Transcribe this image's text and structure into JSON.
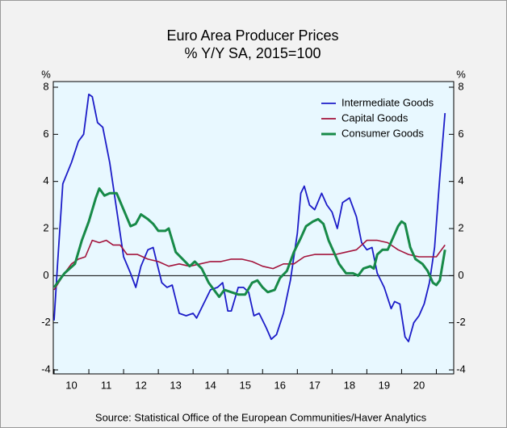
{
  "chart_data": {
    "type": "line",
    "title": "Euro Area Producer Prices",
    "subtitle": "% Y/Y   SA, 2015=100",
    "ylabel": "%",
    "source": "Source:  Statistical Office of the European Communities/Haver Analytics",
    "xlim": [
      2010,
      2021.5
    ],
    "xticks": [
      2010,
      2011,
      2012,
      2013,
      2014,
      2015,
      2016,
      2017,
      2018,
      2019,
      2020,
      2021
    ],
    "xlabels": [
      {
        "value": 2010.5,
        "label": "10"
      },
      {
        "value": 2011.5,
        "label": "11"
      },
      {
        "value": 2012.5,
        "label": "12"
      },
      {
        "value": 2013.5,
        "label": "13"
      },
      {
        "value": 2014.5,
        "label": "14"
      },
      {
        "value": 2015.5,
        "label": "15"
      },
      {
        "value": 2016.5,
        "label": "16"
      },
      {
        "value": 2017.5,
        "label": "17"
      },
      {
        "value": 2018.5,
        "label": "18"
      },
      {
        "value": 2019.5,
        "label": "19"
      },
      {
        "value": 2020.5,
        "label": "20"
      }
    ],
    "ylim": [
      -4.17,
      8.24
    ],
    "yticks": [
      -4,
      -2,
      0,
      2,
      4,
      6,
      8
    ],
    "hline": 0,
    "legend": "top-right",
    "series": [
      {
        "name": "Intermediate Goods",
        "color": "#1c1cc8",
        "x": [
          2010.0,
          2010.1,
          2010.25,
          2010.5,
          2010.7,
          2010.85,
          2011.0,
          2011.1,
          2011.25,
          2011.4,
          2011.6,
          2011.8,
          2012.0,
          2012.2,
          2012.35,
          2012.5,
          2012.7,
          2012.85,
          2013.0,
          2013.1,
          2013.25,
          2013.4,
          2013.6,
          2013.8,
          2014.0,
          2014.1,
          2014.3,
          2014.5,
          2014.7,
          2014.85,
          2015.0,
          2015.1,
          2015.3,
          2015.45,
          2015.6,
          2015.75,
          2015.9,
          2016.1,
          2016.25,
          2016.4,
          2016.6,
          2016.8,
          2017.0,
          2017.1,
          2017.2,
          2017.35,
          2017.5,
          2017.7,
          2017.85,
          2018.0,
          2018.15,
          2018.3,
          2018.5,
          2018.7,
          2018.85,
          2019.0,
          2019.15,
          2019.3,
          2019.5,
          2019.7,
          2019.8,
          2019.95,
          2020.1,
          2020.2,
          2020.35,
          2020.5,
          2020.65,
          2020.8,
          2020.95,
          2021.1,
          2021.25
        ],
        "values": [
          -1.9,
          0.5,
          3.9,
          4.8,
          5.7,
          6.0,
          7.7,
          7.6,
          6.5,
          6.3,
          4.8,
          2.8,
          0.8,
          0.1,
          -0.5,
          0.4,
          1.1,
          1.2,
          0.3,
          -0.3,
          -0.5,
          -0.4,
          -1.6,
          -1.7,
          -1.6,
          -1.8,
          -1.2,
          -0.6,
          -0.5,
          -0.3,
          -1.5,
          -1.5,
          -0.5,
          -0.5,
          -0.7,
          -1.7,
          -1.6,
          -2.2,
          -2.7,
          -2.5,
          -1.6,
          -0.2,
          1.8,
          3.5,
          3.8,
          3.0,
          2.8,
          3.5,
          3.0,
          2.7,
          2.0,
          3.1,
          3.3,
          2.5,
          1.4,
          1.1,
          1.2,
          0.1,
          -0.5,
          -1.4,
          -1.1,
          -1.2,
          -2.6,
          -2.8,
          -2.0,
          -1.7,
          -1.2,
          -0.3,
          1.2,
          4.2,
          6.9
        ]
      },
      {
        "name": "Capital Goods",
        "color": "#a3143c",
        "x": [
          2010.0,
          2010.3,
          2010.5,
          2010.7,
          2010.9,
          2011.1,
          2011.3,
          2011.5,
          2011.7,
          2011.9,
          2012.1,
          2012.4,
          2012.7,
          2013.0,
          2013.3,
          2013.6,
          2013.9,
          2014.2,
          2014.5,
          2014.8,
          2015.1,
          2015.4,
          2015.7,
          2016.0,
          2016.3,
          2016.6,
          2016.9,
          2017.2,
          2017.5,
          2017.8,
          2018.1,
          2018.4,
          2018.7,
          2019.0,
          2019.3,
          2019.6,
          2019.9,
          2020.2,
          2020.5,
          2020.8,
          2021.0,
          2021.25
        ],
        "values": [
          -0.6,
          0.1,
          0.5,
          0.7,
          0.8,
          1.5,
          1.4,
          1.5,
          1.3,
          1.3,
          0.9,
          0.9,
          0.7,
          0.6,
          0.4,
          0.5,
          0.4,
          0.5,
          0.6,
          0.6,
          0.7,
          0.7,
          0.6,
          0.4,
          0.3,
          0.5,
          0.5,
          0.8,
          0.9,
          0.9,
          0.9,
          1.0,
          1.1,
          1.5,
          1.5,
          1.4,
          1.1,
          0.9,
          0.8,
          0.8,
          0.8,
          1.3
        ]
      },
      {
        "name": "Consumer Goods",
        "color": "#178a48",
        "x": [
          2010.0,
          2010.3,
          2010.6,
          2010.8,
          2011.0,
          2011.2,
          2011.3,
          2011.45,
          2011.6,
          2011.8,
          2012.0,
          2012.2,
          2012.35,
          2012.5,
          2012.7,
          2012.85,
          2013.0,
          2013.2,
          2013.3,
          2013.5,
          2013.7,
          2013.9,
          2014.05,
          2014.25,
          2014.45,
          2014.6,
          2014.75,
          2014.9,
          2015.1,
          2015.3,
          2015.5,
          2015.7,
          2015.85,
          2016.0,
          2016.15,
          2016.35,
          2016.5,
          2016.7,
          2016.9,
          2017.1,
          2017.25,
          2017.45,
          2017.6,
          2017.75,
          2017.9,
          2018.05,
          2018.2,
          2018.4,
          2018.6,
          2018.75,
          2018.9,
          2019.1,
          2019.2,
          2019.3,
          2019.45,
          2019.6,
          2019.75,
          2019.9,
          2020.0,
          2020.1,
          2020.25,
          2020.4,
          2020.6,
          2020.75,
          2020.9,
          2021.0,
          2021.1,
          2021.25
        ],
        "values": [
          -0.5,
          0.1,
          0.5,
          1.5,
          2.3,
          3.3,
          3.7,
          3.4,
          3.5,
          3.5,
          2.8,
          2.1,
          2.2,
          2.6,
          2.4,
          2.2,
          1.9,
          1.9,
          2.0,
          1.0,
          0.7,
          0.4,
          0.6,
          0.3,
          -0.3,
          -0.6,
          -0.9,
          -0.6,
          -0.7,
          -0.8,
          -0.8,
          -0.3,
          -0.2,
          -0.5,
          -0.7,
          -0.6,
          -0.1,
          0.2,
          1.0,
          1.6,
          2.1,
          2.3,
          2.4,
          2.2,
          1.5,
          1.0,
          0.5,
          0.1,
          0.1,
          0.0,
          0.3,
          0.4,
          0.3,
          0.9,
          1.1,
          1.1,
          1.6,
          2.1,
          2.3,
          2.2,
          1.2,
          0.7,
          0.5,
          0.2,
          -0.3,
          -0.4,
          -0.2,
          1.1
        ]
      }
    ]
  }
}
